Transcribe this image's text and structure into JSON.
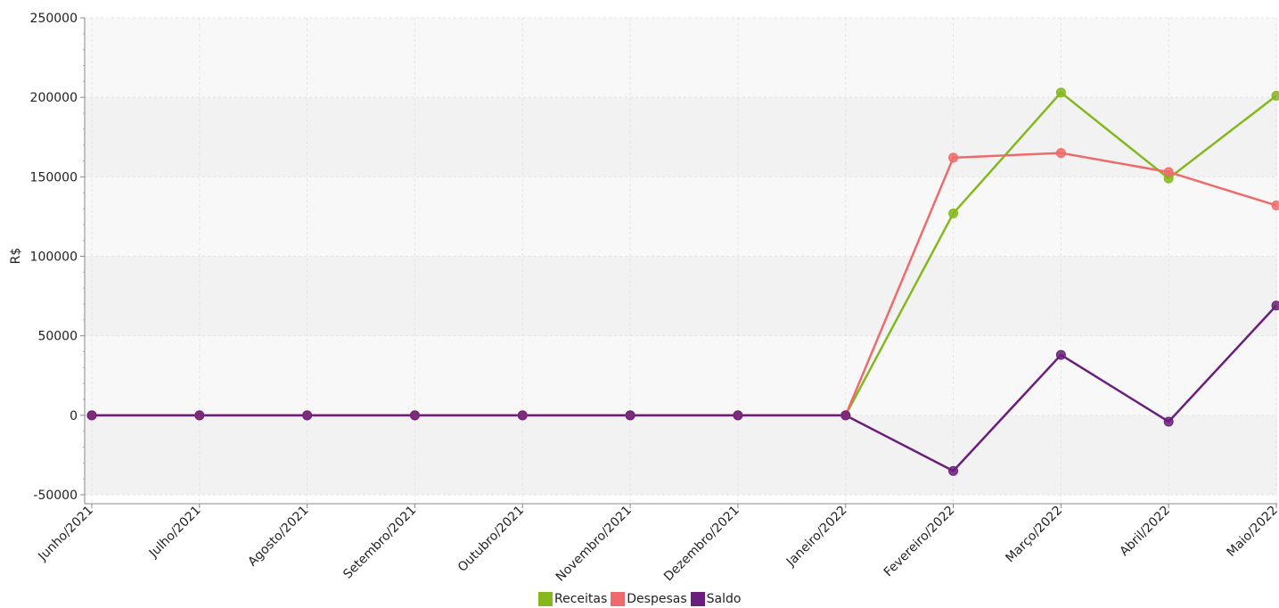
{
  "chart_data": {
    "type": "line",
    "ylabel": "R$",
    "xlabel": "",
    "ylim": [
      -50000,
      250000
    ],
    "yticks": [
      -50000,
      0,
      50000,
      100000,
      150000,
      200000,
      250000
    ],
    "ytick_labels": [
      "-50000",
      "0",
      "50000",
      "100000",
      "150000",
      "200000",
      "250000"
    ],
    "grid": true,
    "legend_position": "bottom",
    "categories": [
      "Junho/2021",
      "Julho/2021",
      "Agosto/2021",
      "Setembro/2021",
      "Outubro/2021",
      "Novembro/2021",
      "Dezembro/2021",
      "Janeiro/2022",
      "Fevereiro/2022",
      "Março/2022",
      "Abril/2022",
      "Maio/2022"
    ],
    "series": [
      {
        "name": "Receitas",
        "color": "#84b81c",
        "values": [
          0,
          0,
          0,
          0,
          0,
          0,
          0,
          0,
          127000,
          203000,
          149000,
          201000
        ]
      },
      {
        "name": "Despesas",
        "color": "#ef6b6b",
        "values": [
          0,
          0,
          0,
          0,
          0,
          0,
          0,
          0,
          162000,
          165000,
          153000,
          132000
        ]
      },
      {
        "name": "Saldo",
        "color": "#6a1f7c",
        "values": [
          0,
          0,
          0,
          0,
          0,
          0,
          0,
          0,
          -35000,
          38000,
          -4000,
          69000
        ]
      }
    ]
  }
}
